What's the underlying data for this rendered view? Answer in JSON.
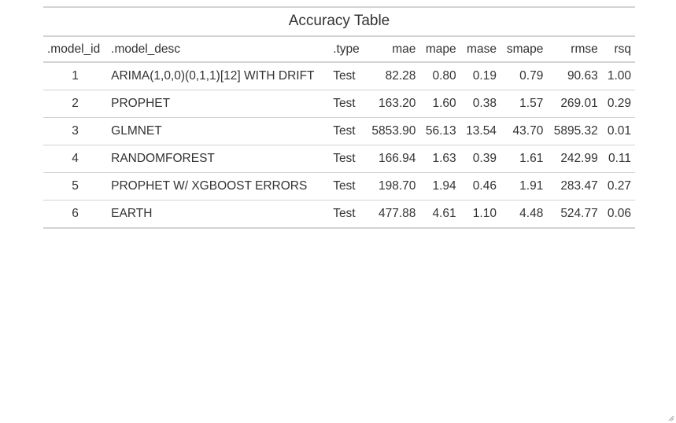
{
  "table": {
    "title": "Accuracy Table",
    "columns": [
      ".model_id",
      ".model_desc",
      ".type",
      "mae",
      "mape",
      "mase",
      "smape",
      "rmse",
      "rsq"
    ],
    "rows": [
      [
        "1",
        "ARIMA(1,0,0)(0,1,1)[12] WITH DRIFT",
        "Test",
        "82.28",
        "0.80",
        "0.19",
        "0.79",
        "90.63",
        "1.00"
      ],
      [
        "2",
        "PROPHET",
        "Test",
        "163.20",
        "1.60",
        "0.38",
        "1.57",
        "269.01",
        "0.29"
      ],
      [
        "3",
        "GLMNET",
        "Test",
        "5853.90",
        "56.13",
        "13.54",
        "43.70",
        "5895.32",
        "0.01"
      ],
      [
        "4",
        "RANDOMFOREST",
        "Test",
        "166.94",
        "1.63",
        "0.39",
        "1.61",
        "242.99",
        "0.11"
      ],
      [
        "5",
        "PROPHET W/ XGBOOST ERRORS",
        "Test",
        "198.70",
        "1.94",
        "0.46",
        "1.91",
        "283.47",
        "0.27"
      ],
      [
        "6",
        "EARTH",
        "Test",
        "477.88",
        "4.61",
        "1.10",
        "4.48",
        "524.77",
        "0.06"
      ]
    ]
  },
  "colors": {
    "text": "#333333",
    "rule": "#d3d3d3",
    "background": "#ffffff"
  },
  "icons": {
    "resize_grip": "resize-grip-icon"
  }
}
